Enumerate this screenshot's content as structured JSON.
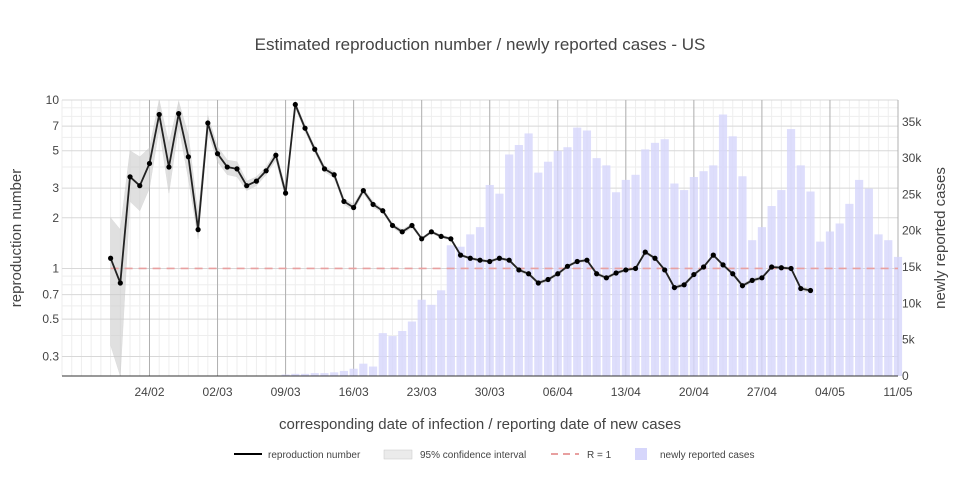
{
  "chart_data": {
    "type": "line",
    "title": "Estimated reproduction number / newly reported cases - US",
    "xlabel": "corresponding date of infection / reporting date of new cases",
    "ylabel_left": "reproduction number",
    "ylabel_right": "newly reported cases",
    "y_left_scale": "log",
    "y_left_range": [
      0.23,
      10
    ],
    "y_left_ticks": [
      0.3,
      0.5,
      0.7,
      1,
      2,
      3,
      5,
      7,
      10
    ],
    "y_right_range": [
      0,
      38000
    ],
    "y_right_ticks": [
      0,
      5000,
      10000,
      15000,
      20000,
      25000,
      30000,
      35000
    ],
    "y_right_tick_labels": [
      "0",
      "5k",
      "10k",
      "15k",
      "20k",
      "25k",
      "30k",
      "35k"
    ],
    "x_range": [
      "2020-02-15",
      "2020-05-11"
    ],
    "x_ticks": [
      "2020-02-24",
      "2020-03-02",
      "2020-03-09",
      "2020-03-16",
      "2020-03-23",
      "2020-03-30",
      "2020-04-06",
      "2020-04-13",
      "2020-04-20",
      "2020-04-27",
      "2020-05-04",
      "2020-05-11"
    ],
    "x_tick_labels": [
      "24/02",
      "02/03",
      "09/03",
      "16/03",
      "23/03",
      "30/03",
      "06/04",
      "13/04",
      "20/04",
      "27/04",
      "04/05",
      "11/05"
    ],
    "grid": true,
    "legend_position": "bottom",
    "series": [
      {
        "name": "reproduction number",
        "kind": "line",
        "color": "#000000",
        "x": [
          "2020-02-20",
          "2020-02-21",
          "2020-02-22",
          "2020-02-23",
          "2020-02-24",
          "2020-02-25",
          "2020-02-26",
          "2020-02-27",
          "2020-02-28",
          "2020-02-29",
          "2020-03-01",
          "2020-03-02",
          "2020-03-03",
          "2020-03-04",
          "2020-03-05",
          "2020-03-06",
          "2020-03-07",
          "2020-03-08",
          "2020-03-09",
          "2020-03-10",
          "2020-03-11",
          "2020-03-12",
          "2020-03-13",
          "2020-03-14",
          "2020-03-15",
          "2020-03-16",
          "2020-03-17",
          "2020-03-18",
          "2020-03-19",
          "2020-03-20",
          "2020-03-21",
          "2020-03-22",
          "2020-03-23",
          "2020-03-24",
          "2020-03-25",
          "2020-03-26",
          "2020-03-27",
          "2020-03-28",
          "2020-03-29",
          "2020-03-30",
          "2020-03-31",
          "2020-04-01",
          "2020-04-02",
          "2020-04-03",
          "2020-04-04",
          "2020-04-05",
          "2020-04-06",
          "2020-04-07",
          "2020-04-08",
          "2020-04-09",
          "2020-04-10",
          "2020-04-11",
          "2020-04-12",
          "2020-04-13",
          "2020-04-14",
          "2020-04-15",
          "2020-04-16",
          "2020-04-17",
          "2020-04-18",
          "2020-04-19",
          "2020-04-20",
          "2020-04-21",
          "2020-04-22",
          "2020-04-23",
          "2020-04-24",
          "2020-04-25",
          "2020-04-26",
          "2020-04-27",
          "2020-04-28",
          "2020-04-29",
          "2020-04-30",
          "2020-05-01",
          "2020-05-02",
          "2020-05-03",
          "2020-05-04"
        ],
        "y": [
          1.15,
          0.82,
          3.5,
          3.1,
          4.2,
          8.2,
          4.0,
          8.3,
          4.6,
          1.7,
          7.3,
          4.8,
          4.0,
          3.9,
          3.1,
          3.3,
          3.8,
          4.7,
          2.8,
          9.4,
          6.8,
          5.1,
          3.9,
          3.6,
          2.5,
          2.3,
          2.9,
          2.4,
          2.2,
          1.8,
          1.65,
          1.8,
          1.5,
          1.65,
          1.55,
          1.5,
          1.2,
          1.15,
          1.12,
          1.1,
          1.15,
          1.12,
          0.98,
          0.93,
          0.82,
          0.86,
          0.93,
          1.03,
          1.1,
          1.12,
          0.93,
          0.88,
          0.94,
          0.98,
          1.0,
          1.25,
          1.15,
          0.98,
          0.77,
          0.8,
          0.92,
          1.02,
          1.2,
          1.05,
          0.93,
          0.79,
          0.85,
          0.88,
          1.02,
          1.01,
          1.0,
          0.76,
          0.74,
          null,
          null
        ],
        "ci_low": [
          0.35,
          0.2,
          2.5,
          2.2,
          3.0,
          6.8,
          2.8,
          7.0,
          3.4,
          1.5,
          6.5,
          4.3,
          3.6,
          3.5,
          2.9,
          3.1,
          3.6,
          4.4,
          2.6,
          9.0,
          6.5,
          4.9,
          3.75,
          3.45,
          2.4,
          2.2,
          2.8,
          2.3,
          2.15,
          1.75,
          1.6,
          1.75,
          1.47,
          1.62,
          1.52,
          1.47,
          1.18,
          1.13,
          1.1,
          1.08,
          1.13,
          1.1,
          0.96,
          0.91,
          0.8,
          0.84,
          0.91,
          1.01,
          1.08,
          1.1,
          0.91,
          0.86,
          0.92,
          0.96,
          0.98,
          1.22,
          1.13,
          0.96,
          0.75,
          0.78,
          0.9,
          1.0,
          1.18,
          1.03,
          0.91,
          0.77,
          0.83,
          0.86,
          1.0,
          0.99,
          0.98,
          0.74,
          0.72,
          null,
          null
        ],
        "ci_high": [
          2.0,
          1.7,
          5.0,
          4.6,
          5.2,
          10.0,
          5.5,
          9.8,
          6.2,
          2.1,
          8.1,
          5.3,
          4.4,
          4.3,
          3.3,
          3.5,
          4.0,
          5.0,
          3.0,
          9.8,
          7.1,
          5.3,
          4.05,
          3.75,
          2.6,
          2.4,
          3.0,
          2.5,
          2.25,
          1.85,
          1.7,
          1.85,
          1.53,
          1.68,
          1.58,
          1.53,
          1.22,
          1.17,
          1.14,
          1.12,
          1.17,
          1.14,
          1.0,
          0.95,
          0.84,
          0.88,
          0.95,
          1.05,
          1.12,
          1.14,
          0.95,
          0.9,
          0.96,
          1.0,
          1.02,
          1.28,
          1.17,
          1.0,
          0.79,
          0.82,
          0.94,
          1.04,
          1.22,
          1.07,
          0.95,
          0.81,
          0.87,
          0.9,
          1.04,
          1.03,
          1.02,
          0.78,
          0.76,
          null,
          null
        ]
      },
      {
        "name": "95% confidence interval",
        "kind": "band",
        "color": "#c8c8c8"
      },
      {
        "name": "R = 1",
        "kind": "reference",
        "value": 1,
        "color": "#e8a0a0"
      },
      {
        "name": "newly reported cases",
        "kind": "bar",
        "axis": "right",
        "color": "#d6d6fb",
        "x": [
          "2020-03-09",
          "2020-03-10",
          "2020-03-11",
          "2020-03-12",
          "2020-03-13",
          "2020-03-14",
          "2020-03-15",
          "2020-03-16",
          "2020-03-17",
          "2020-03-18",
          "2020-03-19",
          "2020-03-20",
          "2020-03-21",
          "2020-03-22",
          "2020-03-23",
          "2020-03-24",
          "2020-03-25",
          "2020-03-26",
          "2020-03-27",
          "2020-03-28",
          "2020-03-29",
          "2020-03-30",
          "2020-03-31",
          "2020-04-01",
          "2020-04-02",
          "2020-04-03",
          "2020-04-04",
          "2020-04-05",
          "2020-04-06",
          "2020-04-07",
          "2020-04-08",
          "2020-04-09",
          "2020-04-10",
          "2020-04-11",
          "2020-04-12",
          "2020-04-13",
          "2020-04-14",
          "2020-04-15",
          "2020-04-16",
          "2020-04-17",
          "2020-04-18",
          "2020-04-19",
          "2020-04-20",
          "2020-04-21",
          "2020-04-22",
          "2020-04-23",
          "2020-04-24",
          "2020-04-25",
          "2020-04-26",
          "2020-04-27",
          "2020-04-28",
          "2020-04-29",
          "2020-04-30",
          "2020-05-01",
          "2020-05-02",
          "2020-05-03",
          "2020-05-04",
          "2020-05-05",
          "2020-05-06",
          "2020-05-07",
          "2020-05-08",
          "2020-05-09",
          "2020-05-10",
          "2020-05-11"
        ],
        "values": [
          200,
          300,
          300,
          400,
          400,
          500,
          700,
          1000,
          1700,
          1300,
          5900,
          5500,
          6200,
          7500,
          10500,
          9800,
          11800,
          18000,
          17800,
          19500,
          20500,
          26300,
          25100,
          30500,
          31800,
          33400,
          28000,
          29500,
          31000,
          31500,
          34200,
          33800,
          30000,
          29000,
          25300,
          27000,
          27700,
          31200,
          32100,
          32600,
          26500,
          25600,
          27400,
          28200,
          29000,
          36000,
          33000,
          27500,
          18700,
          20500,
          23400,
          25600,
          34000,
          29000,
          25400,
          18500,
          19900,
          21000,
          23700,
          27000,
          25800,
          19500,
          18700,
          16400
        ]
      }
    ]
  }
}
